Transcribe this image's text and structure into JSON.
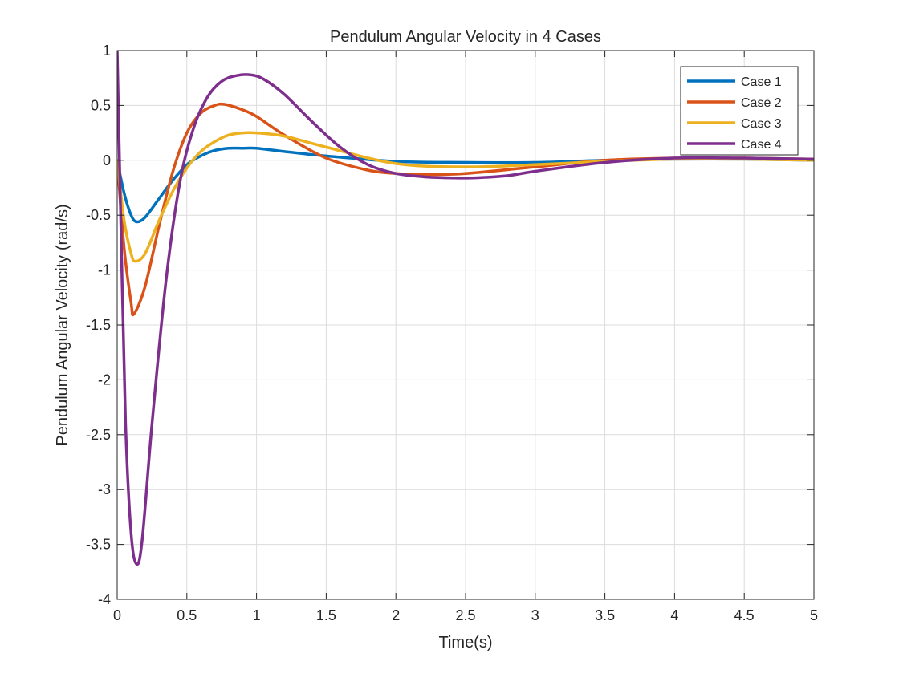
{
  "chart_data": {
    "type": "line",
    "title": "Pendulum Angular Velocity in 4 Cases",
    "xlabel": "Time(s)",
    "ylabel": "Pendulum Angular Velocity (rad/s)",
    "xlim": [
      0,
      5
    ],
    "ylim": [
      -4,
      1
    ],
    "xticks": [
      0,
      0.5,
      1,
      1.5,
      2,
      2.5,
      3,
      3.5,
      4,
      4.5,
      5
    ],
    "xtick_labels": [
      "0",
      "0.5",
      "1",
      "1.5",
      "2",
      "2.5",
      "3",
      "3.5",
      "4",
      "4.5",
      "5"
    ],
    "yticks": [
      -4,
      -3.5,
      -3,
      -2.5,
      -2,
      -1.5,
      -1,
      -0.5,
      0,
      0.5,
      1
    ],
    "ytick_labels": [
      "-4",
      "-3.5",
      "-3",
      "-2.5",
      "-2",
      "-1.5",
      "-1",
      "-0.5",
      "0",
      "0.5",
      "1"
    ],
    "grid": true,
    "legend_position": "top-right",
    "series": [
      {
        "name": "Case 1",
        "color": "#0072BD",
        "x": [
          0,
          0.05,
          0.1,
          0.14,
          0.2,
          0.3,
          0.4,
          0.5,
          0.6,
          0.7,
          0.8,
          0.9,
          1.0,
          1.2,
          1.5,
          2.0,
          2.5,
          3.0,
          3.5,
          4.0,
          4.5,
          5.0
        ],
        "y": [
          0,
          -0.3,
          -0.5,
          -0.56,
          -0.52,
          -0.35,
          -0.18,
          -0.04,
          0.04,
          0.09,
          0.11,
          0.11,
          0.11,
          0.08,
          0.04,
          -0.01,
          -0.02,
          -0.02,
          0,
          0.01,
          0.01,
          0
        ]
      },
      {
        "name": "Case 2",
        "color": "#D95319",
        "x": [
          0,
          0.05,
          0.1,
          0.12,
          0.2,
          0.3,
          0.4,
          0.5,
          0.6,
          0.7,
          0.77,
          0.9,
          1.0,
          1.2,
          1.5,
          1.8,
          2.0,
          2.2,
          2.5,
          3.0,
          3.5,
          4.0,
          4.5,
          5.0
        ],
        "y": [
          0,
          -0.8,
          -1.3,
          -1.4,
          -1.15,
          -0.6,
          -0.1,
          0.25,
          0.43,
          0.5,
          0.51,
          0.46,
          0.4,
          0.23,
          0.02,
          -0.09,
          -0.12,
          -0.13,
          -0.12,
          -0.06,
          0,
          0.02,
          0.02,
          0.01
        ]
      },
      {
        "name": "Case 3",
        "color": "#EDB120",
        "x": [
          0,
          0.05,
          0.1,
          0.13,
          0.2,
          0.3,
          0.4,
          0.5,
          0.6,
          0.7,
          0.8,
          0.9,
          1.0,
          1.2,
          1.5,
          2.0,
          2.5,
          3.0,
          3.5,
          4.0,
          4.5,
          5.0
        ],
        "y": [
          0,
          -0.55,
          -0.85,
          -0.92,
          -0.85,
          -0.55,
          -0.28,
          -0.07,
          0.08,
          0.17,
          0.23,
          0.25,
          0.25,
          0.22,
          0.12,
          -0.03,
          -0.06,
          -0.04,
          -0.01,
          0.01,
          0.01,
          0
        ]
      },
      {
        "name": "Case 4",
        "color": "#7E2F8E",
        "x": [
          0,
          0.03,
          0.06,
          0.1,
          0.14,
          0.18,
          0.25,
          0.35,
          0.45,
          0.55,
          0.65,
          0.75,
          0.85,
          0.95,
          1.05,
          1.2,
          1.4,
          1.6,
          1.8,
          2.0,
          2.2,
          2.4,
          2.55,
          2.8,
          3.0,
          3.5,
          4.0,
          4.5,
          5.0
        ],
        "y": [
          1.0,
          -0.8,
          -2.4,
          -3.4,
          -3.68,
          -3.45,
          -2.4,
          -1.1,
          -0.2,
          0.3,
          0.58,
          0.72,
          0.77,
          0.78,
          0.74,
          0.6,
          0.35,
          0.12,
          -0.04,
          -0.12,
          -0.15,
          -0.16,
          -0.16,
          -0.14,
          -0.1,
          -0.02,
          0.02,
          0.02,
          0.01
        ]
      }
    ]
  }
}
